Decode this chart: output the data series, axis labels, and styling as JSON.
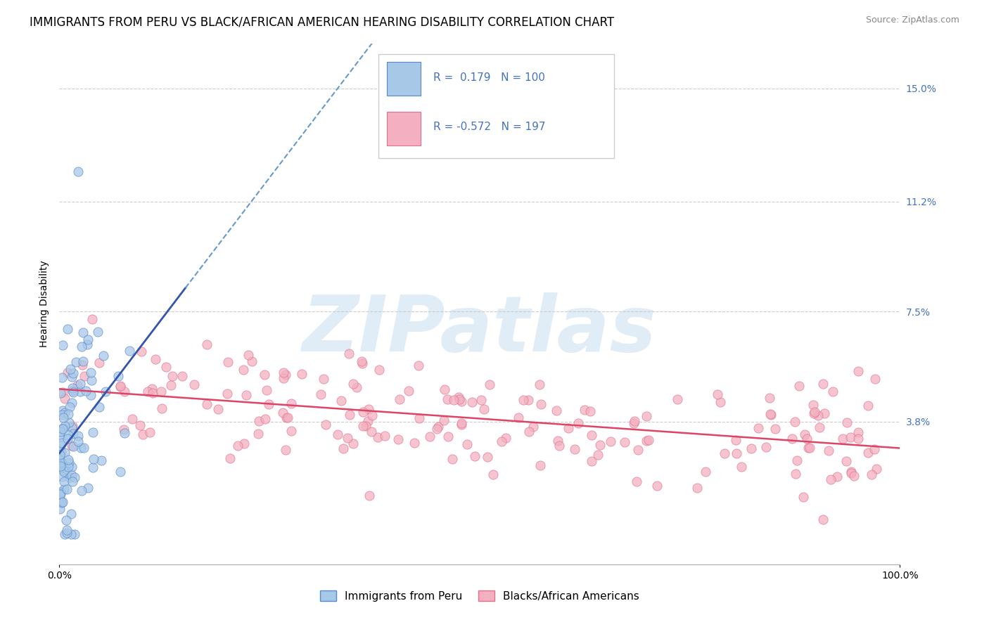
{
  "title": "IMMIGRANTS FROM PERU VS BLACK/AFRICAN AMERICAN HEARING DISABILITY CORRELATION CHART",
  "source": "Source: ZipAtlas.com",
  "ylabel": "Hearing Disability",
  "y_tick_vals": [
    0.038,
    0.075,
    0.112,
    0.15
  ],
  "y_tick_labels": [
    "3.8%",
    "7.5%",
    "11.2%",
    "15.0%"
  ],
  "xlim": [
    0.0,
    1.0
  ],
  "ylim": [
    -0.01,
    0.165
  ],
  "blue_R": 0.179,
  "blue_N": 100,
  "pink_R": -0.572,
  "pink_N": 197,
  "blue_color": "#a8c8e8",
  "pink_color": "#f4b0c0",
  "blue_edge": "#5588cc",
  "pink_edge": "#e07090",
  "blue_line_color": "#3355aa",
  "pink_line_color": "#dd4466",
  "blue_dashed_color": "#6699cc",
  "watermark_text": "ZIPatlas",
  "legend_blue_label": "Immigrants from Peru",
  "legend_pink_label": "Blacks/African Americans",
  "title_fontsize": 12,
  "source_fontsize": 9,
  "axis_label_fontsize": 10,
  "tick_fontsize": 10,
  "legend_fontsize": 11
}
